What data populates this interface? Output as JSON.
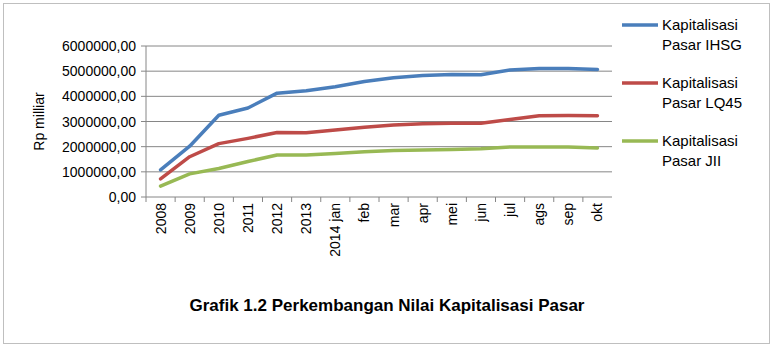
{
  "chart_data": {
    "type": "line",
    "title": "Grafik 1.2 Perkembangan Nilai Kapitalisasi Pasar",
    "y_label": "Rp milliar",
    "categories": [
      "2008",
      "2009",
      "2010",
      "2011",
      "2012",
      "2013",
      "2014 jan",
      "feb",
      "mar",
      "apr",
      "mei",
      "jun",
      "jul",
      "ags",
      "sep",
      "okt"
    ],
    "series": [
      {
        "name": "Kapitalisasi Pasar IHSG",
        "color": "#4a7ebb",
        "values": [
          1076000,
          2019000,
          3247000,
          3537000,
          4127000,
          4219000,
          4380000,
          4590000,
          4740000,
          4830000,
          4870000,
          4860000,
          5050000,
          5110000,
          5110000,
          5070000
        ]
      },
      {
        "name": "Kapitalisasi Pasar LQ45",
        "color": "#be4b48",
        "values": [
          720000,
          1600000,
          2120000,
          2330000,
          2560000,
          2550000,
          2660000,
          2770000,
          2860000,
          2910000,
          2930000,
          2930000,
          3080000,
          3230000,
          3240000,
          3230000
        ]
      },
      {
        "name": "Kapitalisasi Pasar JII",
        "color": "#98b954",
        "values": [
          430000,
          920000,
          1130000,
          1410000,
          1670000,
          1670000,
          1730000,
          1800000,
          1850000,
          1870000,
          1890000,
          1920000,
          1990000,
          1990000,
          1990000,
          1950000
        ]
      }
    ],
    "ylim": [
      0,
      6000000
    ],
    "yticks": [
      {
        "value": 0,
        "label": "0,00"
      },
      {
        "value": 1000000,
        "label": "1000000,00"
      },
      {
        "value": 2000000,
        "label": "2000000,00"
      },
      {
        "value": 3000000,
        "label": "3000000,00"
      },
      {
        "value": 4000000,
        "label": "4000000,00"
      },
      {
        "value": 5000000,
        "label": "5000000,00"
      },
      {
        "value": 6000000,
        "label": "6000000,00"
      }
    ],
    "grid": true,
    "legend": "right"
  }
}
